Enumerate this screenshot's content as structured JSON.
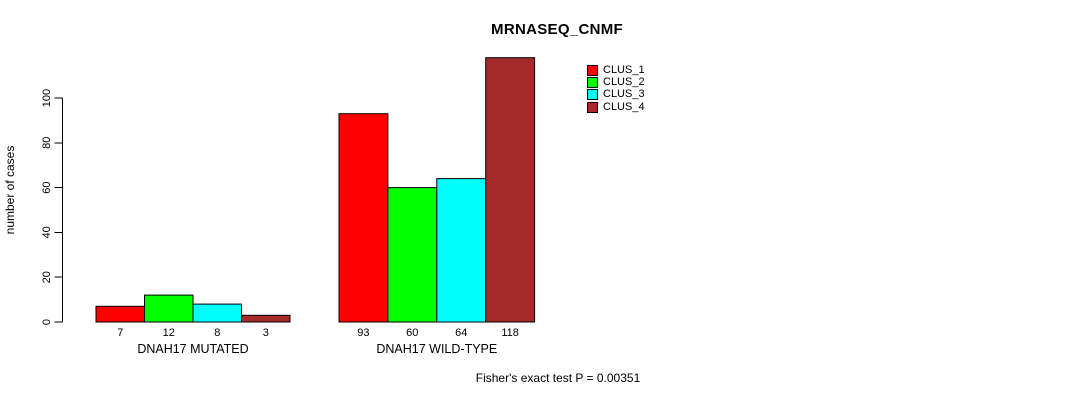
{
  "page": {
    "background_color": "#FFFFFF",
    "text_color": "#000000"
  },
  "chart_data": {
    "type": "bar",
    "title": "MRNASEQ_CNMF",
    "ylabel": "number of cases",
    "xlabel": "",
    "footnote": "Fisher's exact test P = 0.00351",
    "categories": [
      "DNAH17 MUTATED",
      "DNAH17 WILD-TYPE"
    ],
    "series": [
      {
        "name": "CLUS_1",
        "color": "#FF0000",
        "values": [
          7,
          93
        ]
      },
      {
        "name": "CLUS_2",
        "color": "#00FF00",
        "values": [
          12,
          60
        ]
      },
      {
        "name": "CLUS_3",
        "color": "#00FFFF",
        "values": [
          8,
          64
        ]
      },
      {
        "name": "CLUS_4",
        "color": "#A52A2A",
        "values": [
          3,
          118
        ]
      }
    ],
    "groups": [
      {
        "label": "DNAH17 MUTATED",
        "values": [
          7,
          12,
          8,
          3
        ]
      },
      {
        "label": "DNAH17 WILD-TYPE",
        "values": [
          93,
          60,
          64,
          118
        ]
      }
    ],
    "value_labels": [
      [
        "7",
        "12",
        "8",
        "3"
      ],
      [
        "93",
        "60",
        "64",
        "118"
      ]
    ],
    "y_ticks": [
      0,
      20,
      40,
      60,
      80,
      100
    ],
    "ylim": [
      0,
      118
    ],
    "grid": false,
    "legend_position": "top-right",
    "bar_border_color": "#000000",
    "axis_color": "#000000"
  }
}
